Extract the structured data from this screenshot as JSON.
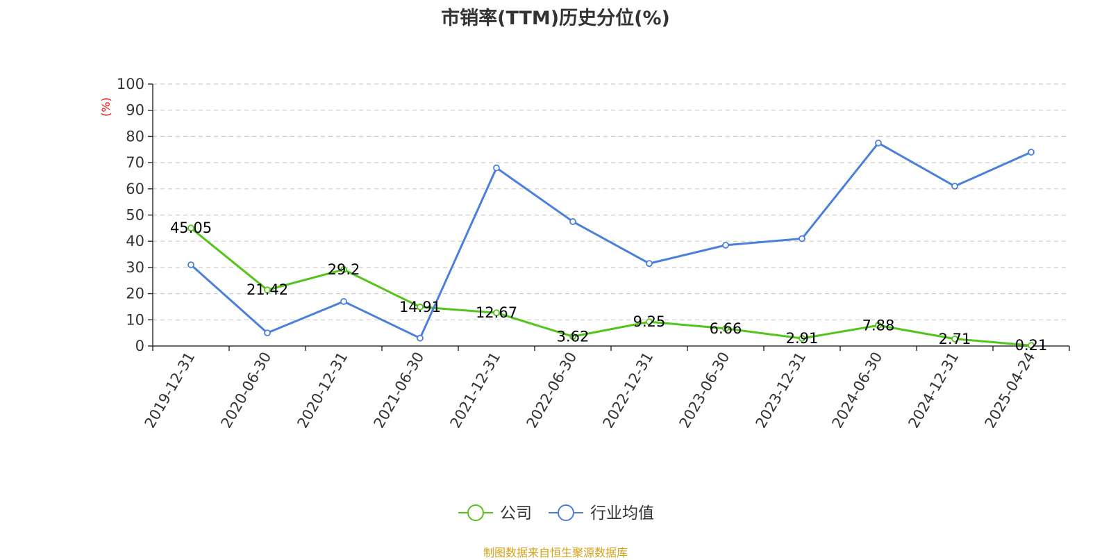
{
  "chart_data": {
    "type": "line",
    "title": "市销率(TTM)历史分位(%)",
    "ylabel": "(%)",
    "ylim": [
      0,
      100
    ],
    "yticks": [
      0,
      10,
      20,
      30,
      40,
      50,
      60,
      70,
      80,
      90,
      100
    ],
    "grid": true,
    "legend_position": "bottom",
    "categories": [
      "2019-12-31",
      "2020-06-30",
      "2020-12-31",
      "2021-06-30",
      "2021-12-31",
      "2022-06-30",
      "2022-12-31",
      "2023-06-30",
      "2023-12-31",
      "2024-06-30",
      "2024-12-31",
      "2025-04-24"
    ],
    "series": [
      {
        "name": "公司",
        "color": "#52c41a",
        "values": [
          45.05,
          21.42,
          29.2,
          14.91,
          12.67,
          3.62,
          9.25,
          6.66,
          2.91,
          7.88,
          2.71,
          0.21
        ],
        "labels": [
          "45.05",
          "21.42",
          "29.2",
          "14.91",
          "12.67",
          "3.62",
          "9.25",
          "6.66",
          "2.91",
          "7.88",
          "2.71",
          "0.21"
        ]
      },
      {
        "name": "行业均值",
        "color": "#4a7fdc",
        "values": [
          31,
          5,
          17,
          3,
          68,
          47.5,
          31.5,
          38.5,
          41,
          77.5,
          61,
          74
        ]
      }
    ]
  },
  "footer": {
    "source": "制图数据来自恒生聚源数据库"
  }
}
